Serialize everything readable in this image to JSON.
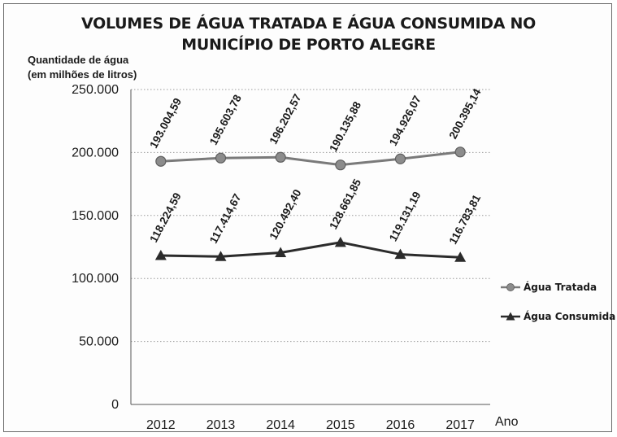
{
  "chart_data": {
    "type": "line",
    "title_line1": "VOLUMES DE ÁGUA TRATADA E ÁGUA CONSUMIDA NO",
    "title_line2": "MUNICÍPIO DE PORTO ALEGRE",
    "ylabel_line1": "Quantidade de água",
    "ylabel_line2": "(em milhões de litros)",
    "xlabel": "Ano",
    "categories": [
      "2012",
      "2013",
      "2014",
      "2015",
      "2016",
      "2017"
    ],
    "ylim": [
      0,
      250000
    ],
    "yticks": [
      0,
      50000,
      100000,
      150000,
      200000,
      250000
    ],
    "ytick_labels": [
      "0",
      "50.000",
      "100.000",
      "150.000",
      "200.000",
      "250.000"
    ],
    "grid": "horizontal-dotted",
    "legend_position": "right",
    "series": [
      {
        "name": "Água Tratada",
        "marker": "circle",
        "color": "#7a7a7a",
        "values": [
          193004.59,
          195603.78,
          196202.57,
          190135.88,
          194926.07,
          200395.14
        ],
        "labels": [
          "193.004,59",
          "195.603,78",
          "196.202,57",
          "190.135,88",
          "194.926,07",
          "200.395,14"
        ]
      },
      {
        "name": "Água Consumida",
        "marker": "triangle",
        "color": "#2b2b2b",
        "values": [
          118224.59,
          117414.67,
          120492.4,
          128661.85,
          119131.19,
          116783.81
        ],
        "labels": [
          "118.224,59",
          "117.414,67",
          "120.492,40",
          "128.661,85",
          "119.131,19",
          "116.783,81"
        ]
      }
    ]
  }
}
